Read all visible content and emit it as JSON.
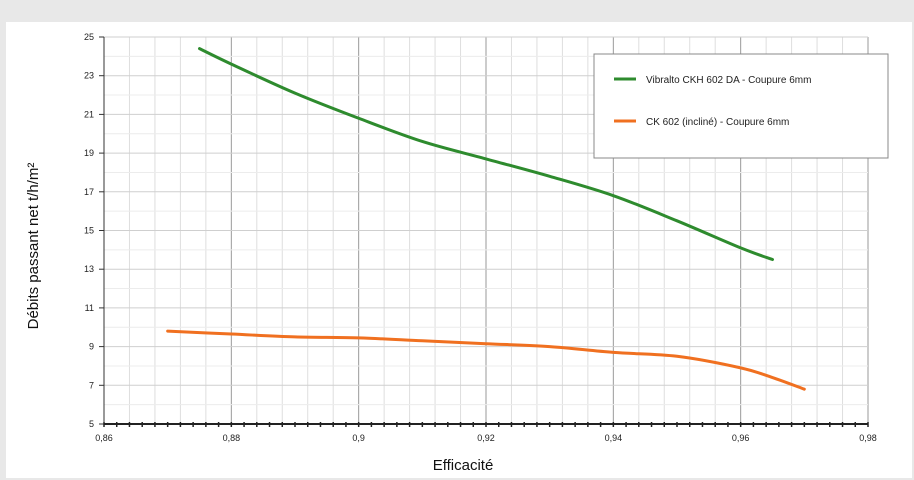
{
  "chart_data": {
    "type": "line",
    "title": "",
    "xlabel": "Efficacité",
    "ylabel": "Débits passant net t/h/m²",
    "xlim": [
      0.86,
      0.98
    ],
    "ylim": [
      5,
      25
    ],
    "x_ticks": [
      "0,86",
      "0,88",
      "0,9",
      "0,92",
      "0,94",
      "0,96",
      "0,98"
    ],
    "x_tick_values": [
      0.86,
      0.88,
      0.9,
      0.92,
      0.94,
      0.96,
      0.98
    ],
    "y_ticks": [
      "5",
      "7",
      "9",
      "11",
      "13",
      "15",
      "17",
      "19",
      "21",
      "23",
      "25"
    ],
    "y_tick_values": [
      5,
      7,
      9,
      11,
      13,
      15,
      17,
      19,
      21,
      23,
      25
    ],
    "grid": true,
    "legend_position": "top-right",
    "series": [
      {
        "name": "Vibralto CKH 602 DA - Coupure 6mm",
        "color": "#2e8b2e",
        "x": [
          0.875,
          0.88,
          0.89,
          0.9,
          0.91,
          0.92,
          0.93,
          0.94,
          0.95,
          0.96,
          0.965
        ],
        "y": [
          24.4,
          23.6,
          22.1,
          20.8,
          19.6,
          18.7,
          17.8,
          16.8,
          15.5,
          14.1,
          13.5
        ]
      },
      {
        "name": "CK 602 (incliné) - Coupure 6mm",
        "color": "#f07020",
        "x": [
          0.87,
          0.88,
          0.89,
          0.9,
          0.91,
          0.92,
          0.93,
          0.94,
          0.95,
          0.96,
          0.965,
          0.97
        ],
        "y": [
          9.8,
          9.65,
          9.5,
          9.45,
          9.3,
          9.15,
          9.0,
          8.7,
          8.5,
          7.9,
          7.4,
          6.8
        ]
      }
    ]
  }
}
